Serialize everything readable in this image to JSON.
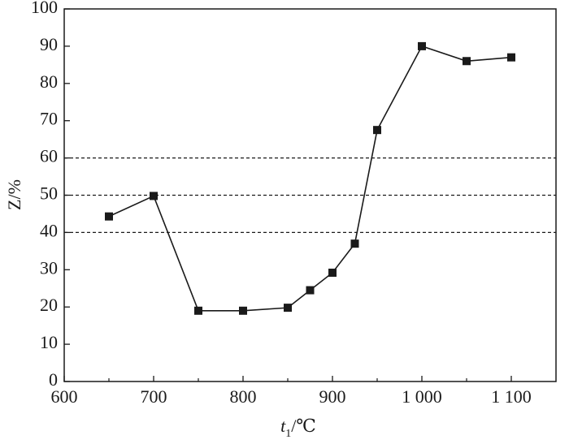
{
  "chart_data": {
    "type": "line",
    "xlabel": {
      "main": "t",
      "sub": "1",
      "unit": "/℃"
    },
    "ylabel": "Z/%",
    "xlim": [
      600,
      1150
    ],
    "ylim": [
      0,
      100
    ],
    "x_ticks": [
      600,
      700,
      800,
      900,
      1000,
      1100
    ],
    "x_tick_labels": [
      "600",
      "700",
      "800",
      "900",
      "1 000",
      "1 100"
    ],
    "y_ticks": [
      0,
      10,
      20,
      30,
      40,
      50,
      60,
      70,
      80,
      90,
      100
    ],
    "y_tick_labels": [
      "0",
      "10",
      "20",
      "30",
      "40",
      "50",
      "60",
      "70",
      "80",
      "90",
      "100"
    ],
    "reference_lines": [
      40,
      50,
      60
    ],
    "grid": false,
    "series": [
      {
        "x": [
          650,
          700,
          750,
          800,
          850,
          875,
          900,
          925,
          950,
          1000,
          1050,
          1100
        ],
        "y": [
          44.3,
          49.8,
          19.0,
          19.0,
          19.8,
          24.5,
          29.2,
          37.0,
          67.5,
          90.0,
          86.0,
          87.0
        ],
        "marker": "square",
        "color": "#1a1a1a"
      }
    ]
  }
}
